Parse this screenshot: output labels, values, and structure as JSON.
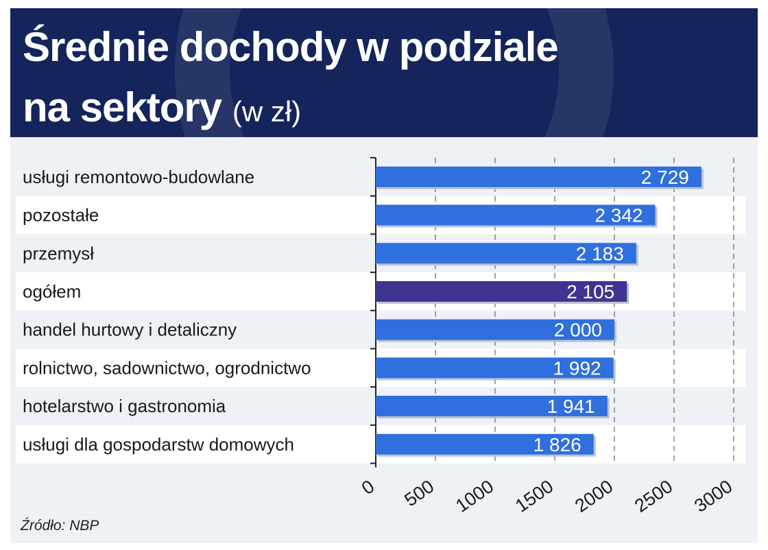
{
  "title": {
    "line1": "Średnie dochody w podziale",
    "line2": "na sektory",
    "unit": "(w zł)"
  },
  "source": "Źródło: NBP",
  "colors": {
    "header_bg": "#15255b",
    "bar": "#2f6fde",
    "bar_highlight": "#3e3591",
    "panel_bg": "#eef1f5",
    "row_stripe": "#ffffff"
  },
  "chart_data": {
    "type": "bar",
    "orientation": "horizontal",
    "categories": [
      "usługi remontowo-budowlane",
      "pozostałe",
      "przemysł",
      "ogółem",
      "handel hurtowy i detaliczny",
      "rolnictwo, sadownictwo, ogrodnictwo",
      "hotelarstwo i gastronomia",
      "usługi dla gospodarstw domowych"
    ],
    "values": [
      2729,
      2342,
      2183,
      2105,
      2000,
      1992,
      1941,
      1826
    ],
    "value_labels": [
      "2 729",
      "2 342",
      "2 183",
      "2 105",
      "2 000",
      "1 992",
      "1 941",
      "1 826"
    ],
    "highlight_category": "ogółem",
    "xlim": [
      0,
      3000
    ],
    "x_ticks": [
      "0",
      "500",
      "1000",
      "1500",
      "2000",
      "2500",
      "3000"
    ],
    "grid": "dashed vertical"
  }
}
